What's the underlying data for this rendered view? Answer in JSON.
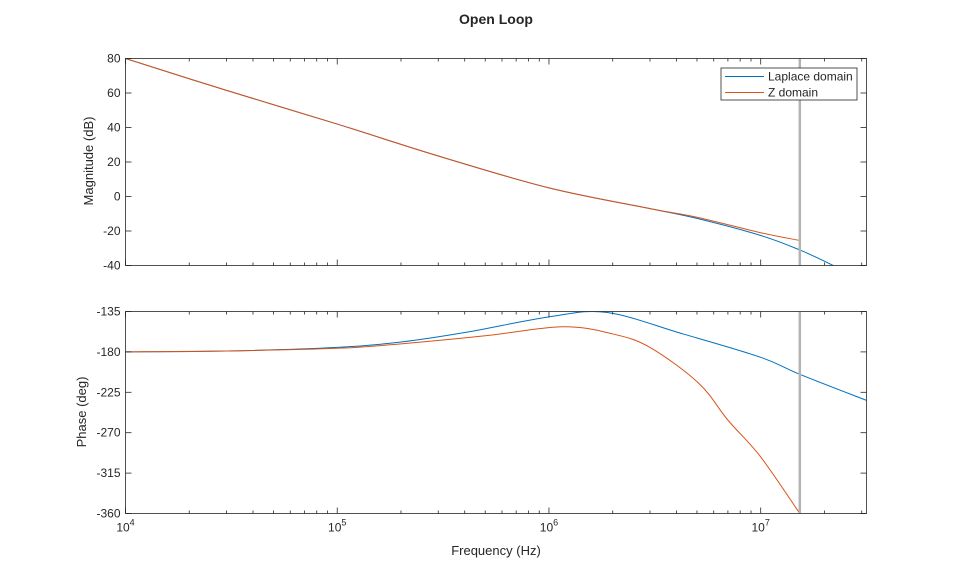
{
  "chart_data": [
    {
      "type": "line",
      "title": "Open Loop",
      "ylabel": "Magnitude (dB)",
      "xscale": "log",
      "xlim": [
        10000,
        31600000
      ],
      "ylim": [
        -40,
        80
      ],
      "yticks": [
        "80",
        "60",
        "40",
        "20",
        "0",
        "-20",
        "-40"
      ],
      "grid": false,
      "legend": {
        "placement": "top-right",
        "entries": [
          "Laplace domain",
          "Z domain"
        ]
      },
      "vline": {
        "x": 15300000,
        "color": "#b3b3b3"
      },
      "series": [
        {
          "name": "Laplace domain",
          "color": "#0072bd",
          "x": [
            10000,
            30000,
            100000,
            300000,
            1000000,
            3000000,
            5000000,
            10000000,
            15300000,
            22000000,
            31600000
          ],
          "y": [
            80,
            61.5,
            42,
            23.5,
            5,
            -7,
            -12.7,
            -22.6,
            -31,
            -40,
            -50
          ]
        },
        {
          "name": "Z domain",
          "color": "#d95319",
          "x": [
            10000,
            30000,
            100000,
            300000,
            1000000,
            3000000,
            5000000,
            10000000,
            15300000
          ],
          "y": [
            80,
            61.5,
            42,
            23.5,
            5,
            -7,
            -12,
            -21,
            -25.5
          ]
        }
      ]
    },
    {
      "type": "line",
      "xlabel": "Frequency (Hz)",
      "ylabel": "Phase (deg)",
      "xscale": "log",
      "xlim": [
        10000,
        31600000
      ],
      "ylim": [
        -360,
        -135
      ],
      "yticks": [
        "-135",
        "-180",
        "-225",
        "-270",
        "-315",
        "-360"
      ],
      "xticks": [
        {
          "base": "10",
          "exp": "4"
        },
        {
          "base": "10",
          "exp": "5"
        },
        {
          "base": "10",
          "exp": "6"
        },
        {
          "base": "10",
          "exp": "7"
        }
      ],
      "grid": false,
      "vline": {
        "x": 15300000,
        "color": "#b3b3b3"
      },
      "series": [
        {
          "name": "Laplace domain",
          "color": "#0072bd",
          "x": [
            10000,
            30000,
            100000,
            200000,
            410000,
            1000000,
            1870000,
            4300000,
            10000000,
            15300000,
            31600000
          ],
          "y": [
            -180,
            -179,
            -175,
            -169,
            -158,
            -141,
            -136,
            -160,
            -186,
            -205,
            -234
          ]
        },
        {
          "name": "Z domain",
          "color": "#d95319",
          "x": [
            10000,
            30000,
            100000,
            200000,
            500000,
            1160000,
            2000000,
            3000000,
            5100000,
            7000000,
            10000000,
            15300000
          ],
          "y": [
            -180,
            -179,
            -176,
            -171,
            -162,
            -152,
            -160,
            -175,
            -215,
            -256,
            -297,
            -360
          ]
        }
      ]
    }
  ]
}
